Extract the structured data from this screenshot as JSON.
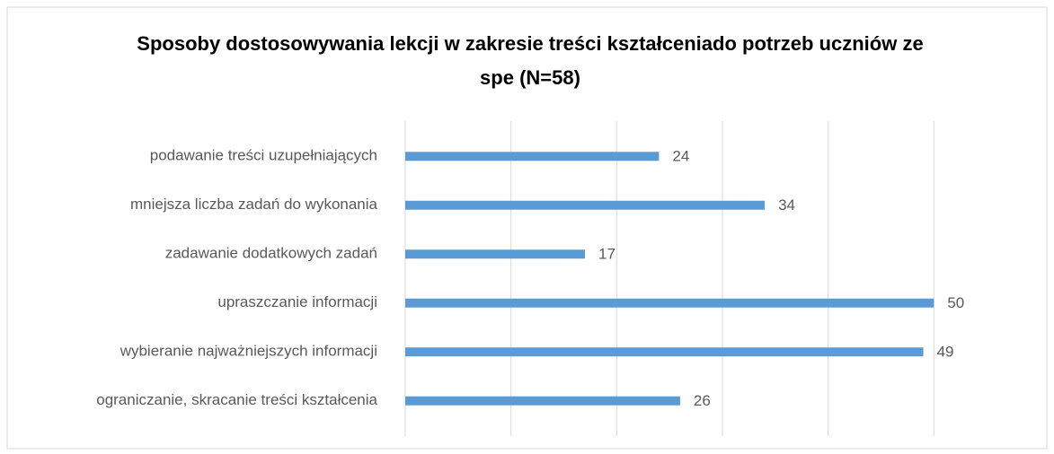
{
  "chart_data": {
    "type": "barh",
    "title": "Sposoby dostosowywania lekcji w zakresie treści kształceniado potrzeb uczniów ze spe (N=58)",
    "categories": [
      "podawanie treści uzupełniających",
      "mniejsza liczba zadań do wykonania",
      "zadawanie dodatkowych zadań",
      "upraszczanie informacji",
      "wybieranie najważniejszych informacji",
      "ograniczanie, skracanie treści kształcenia"
    ],
    "values": [
      24,
      34,
      17,
      50,
      49,
      26
    ],
    "color": "#5b9bd5",
    "xlim": [
      0,
      60
    ],
    "xticks": [
      0,
      10,
      20,
      30,
      40,
      50
    ],
    "grid": true
  }
}
